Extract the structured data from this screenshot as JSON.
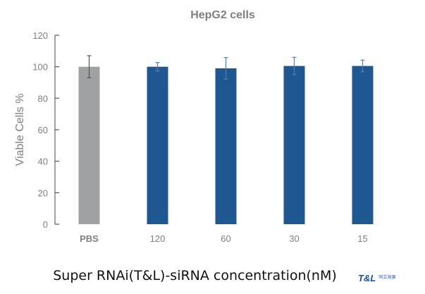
{
  "chart_data": {
    "type": "bar",
    "title": "HepG2 cells",
    "xlabel": "Super RNAi(T&L)-siRNA concentration(nM)",
    "ylabel": "Viable Cells %",
    "ylim": [
      0,
      120
    ],
    "yticks": [
      "0",
      "20",
      "40",
      "60",
      "80",
      "100",
      "120"
    ],
    "yticks_values": [
      0,
      20,
      40,
      60,
      80,
      100,
      120
    ],
    "categories": [
      "PBS",
      "120",
      "60",
      "30",
      "15"
    ],
    "values": [
      100,
      100,
      99,
      100.5,
      100.5
    ],
    "errors": [
      7,
      2.7,
      6.8,
      5.5,
      3.7
    ],
    "colors": [
      "#a0a1a5",
      "#1f5790",
      "#1f5790",
      "#1f5790",
      "#1f5790"
    ],
    "error_colors": [
      "#555555",
      "#4a7fc0",
      "#4a7fc0",
      "#4a7fc0",
      "#4a7fc0"
    ],
    "grid": false,
    "legend": "none"
  },
  "logo": {
    "text": "T&L",
    "subtext": "同立海源"
  }
}
